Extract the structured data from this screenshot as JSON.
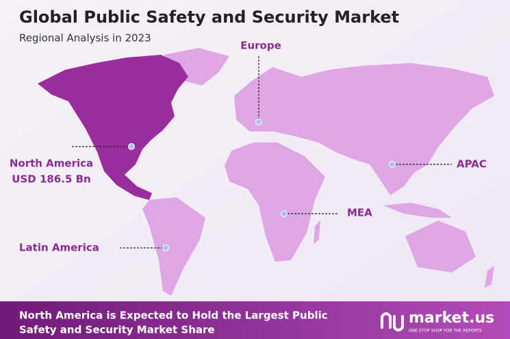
{
  "title": "Global Public Safety and Security Market",
  "subtitle": "Regional Analysis in 2023",
  "regions": [
    {
      "label": "Europe"
    },
    {
      "label": "North America",
      "value_text": "USD 186.5 Bn"
    },
    {
      "label": "APAC"
    },
    {
      "label": "MEA"
    },
    {
      "label": "Latin America"
    }
  ],
  "footer": {
    "line1": "North America is Expected to Hold the Largest Public",
    "line2": "Safety and Security Market Share"
  },
  "logo": {
    "name": "market.us",
    "tagline": "ONE STOP SHOP FOR THE REPORTS"
  }
}
